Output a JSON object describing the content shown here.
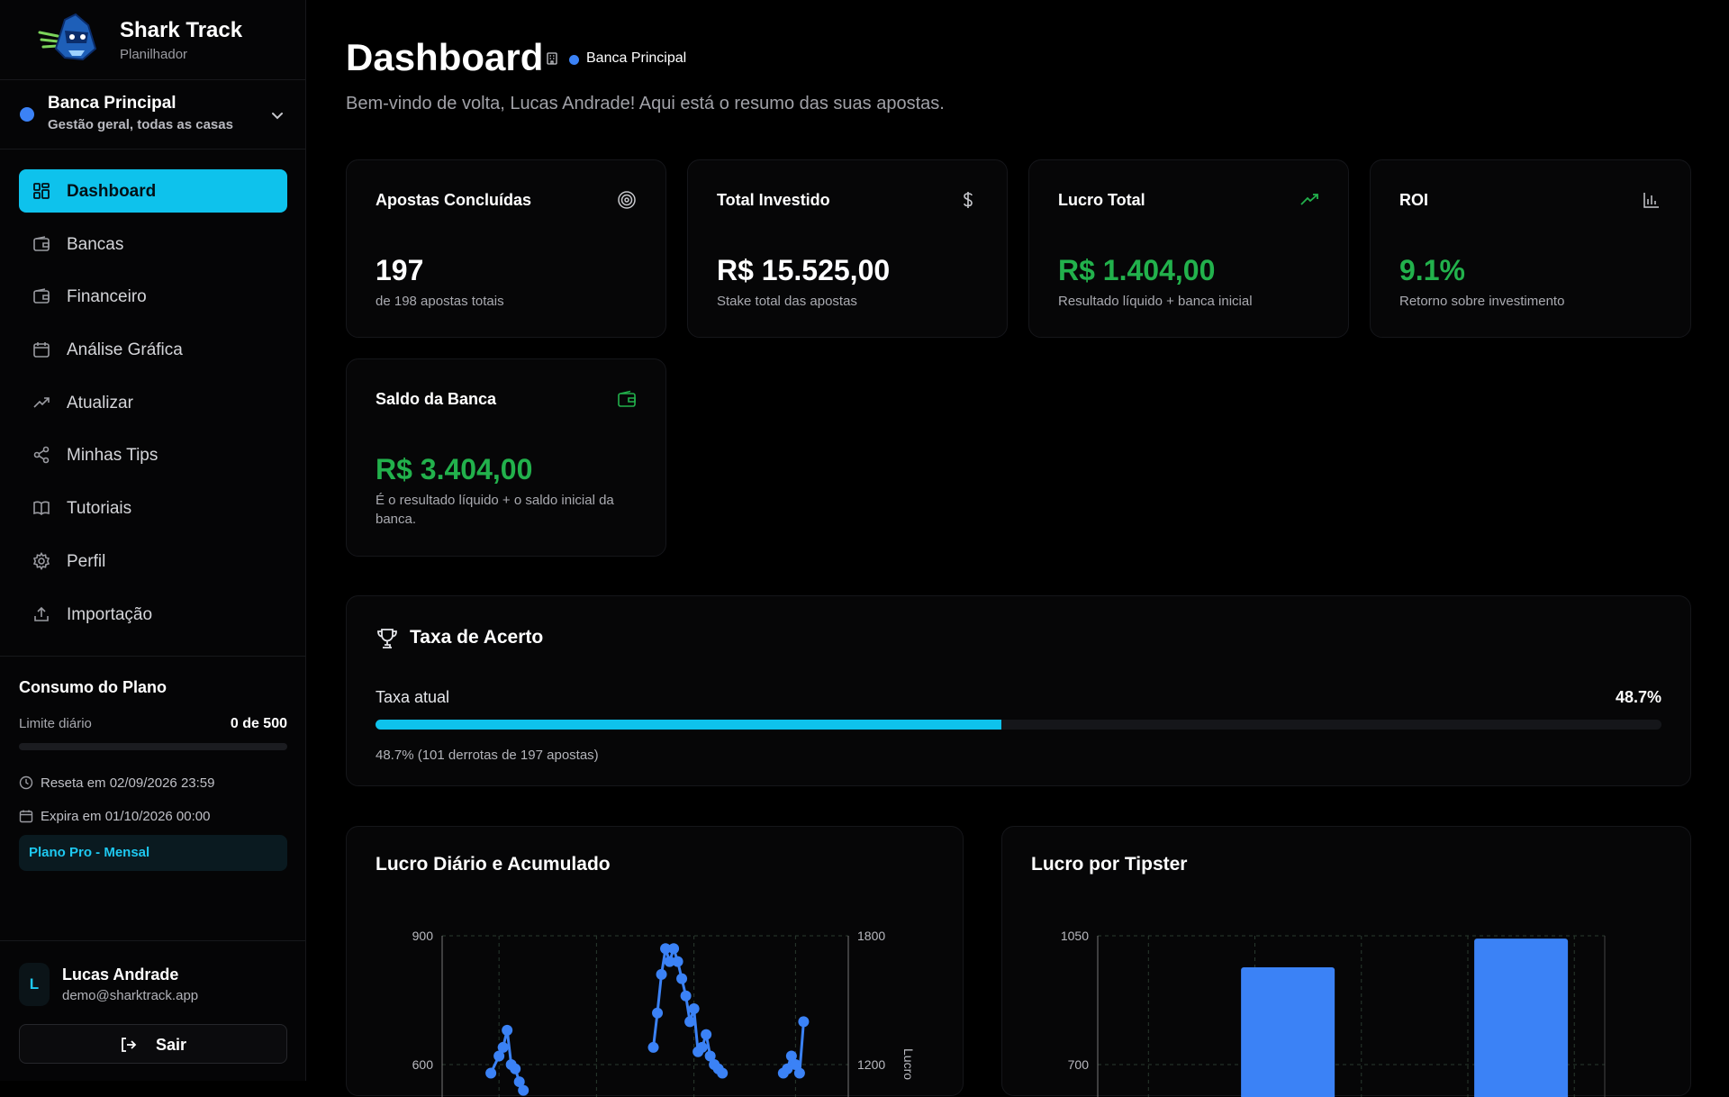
{
  "app": {
    "name": "Shark Track",
    "subtitle": "Planilhador"
  },
  "bank_selector": {
    "name": "Banca Principal",
    "description": "Gestão geral, todas as casas",
    "dot_color": "#3b82f6"
  },
  "nav": {
    "items": [
      {
        "label": "Dashboard",
        "icon": "grid-icon",
        "active": true
      },
      {
        "label": "Bancas",
        "icon": "wallet-icon",
        "active": false
      },
      {
        "label": "Financeiro",
        "icon": "wallet-icon",
        "active": false
      },
      {
        "label": "Análise Gráfica",
        "icon": "calendar-icon",
        "active": false
      },
      {
        "label": "Atualizar",
        "icon": "trending-up-icon",
        "active": false
      },
      {
        "label": "Minhas Tips",
        "icon": "share-icon",
        "active": false
      },
      {
        "label": "Tutoriais",
        "icon": "book-icon",
        "active": false
      },
      {
        "label": "Perfil",
        "icon": "gear-icon",
        "active": false
      },
      {
        "label": "Importação",
        "icon": "upload-icon",
        "active": false
      }
    ]
  },
  "plan": {
    "title": "Consumo do Plano",
    "limit_label": "Limite diário",
    "limit_value": "0 de 500",
    "usage_fraction": 0,
    "reset_text": "Reseta em 02/09/2026 23:59",
    "expire_text": "Expira em 01/10/2026 00:00",
    "badge": "Plano Pro - Mensal"
  },
  "user": {
    "initial": "L",
    "name": "Lucas Andrade",
    "email": "demo@sharktrack.app",
    "logout_label": "Sair"
  },
  "header": {
    "title": "Dashboard",
    "bank_label": "Banca Principal",
    "welcome": "Bem-vindo de volta, Lucas Andrade! Aqui está o resumo das suas apostas."
  },
  "stats": {
    "completed": {
      "title": "Apostas Concluídas",
      "value": "197",
      "sub": "de 198 apostas totais",
      "icon": "target-icon"
    },
    "invested": {
      "title": "Total Investido",
      "value": "R$ 15.525,00",
      "sub": "Stake total das apostas",
      "icon": "dollar-icon"
    },
    "profit": {
      "title": "Lucro Total",
      "value": "R$ 1.404,00",
      "sub": "Resultado líquido + banca inicial",
      "icon": "trending-up-icon"
    },
    "roi": {
      "title": "ROI",
      "value": "9.1%",
      "sub": "Retorno sobre investimento",
      "icon": "bar-chart-icon"
    },
    "balance": {
      "title": "Saldo da Banca",
      "value": "R$ 3.404,00",
      "sub": "É o resultado líquido + o saldo inicial da banca.",
      "icon": "wallet-icon"
    }
  },
  "hit_rate": {
    "title": "Taxa de Acerto",
    "label": "Taxa atual",
    "value_text": "48.7%",
    "percent": 48.7,
    "note": "48.7% (101 derrotas de 197 apostas)",
    "icon": "trophy-icon"
  },
  "colors": {
    "accent": "#0ec2ec",
    "positive": "#22b14c",
    "series": "#3b82f6"
  },
  "chart_data": [
    {
      "type": "line",
      "title": "Lucro Diário e Acumulado",
      "left_ticks": [
        "900",
        "600"
      ],
      "right_ticks": [
        "1800",
        "1200"
      ],
      "right_label": "Lucro",
      "ylim_left": [
        600,
        900
      ],
      "series": [
        {
          "values": [
            [
              0.12,
              580
            ],
            [
              0.14,
              620
            ],
            [
              0.15,
              640
            ],
            [
              0.16,
              680
            ],
            [
              0.17,
              600
            ],
            [
              0.18,
              590
            ],
            [
              0.19,
              560
            ],
            [
              0.2,
              540
            ],
            [
              0.52,
              640
            ],
            [
              0.53,
              720
            ],
            [
              0.54,
              810
            ],
            [
              0.55,
              870
            ],
            [
              0.56,
              840
            ],
            [
              0.57,
              870
            ],
            [
              0.58,
              840
            ],
            [
              0.59,
              800
            ],
            [
              0.6,
              760
            ],
            [
              0.61,
              700
            ],
            [
              0.62,
              730
            ],
            [
              0.63,
              630
            ],
            [
              0.64,
              640
            ],
            [
              0.65,
              670
            ],
            [
              0.66,
              620
            ],
            [
              0.67,
              600
            ],
            [
              0.68,
              590
            ],
            [
              0.69,
              580
            ],
            [
              0.84,
              580
            ],
            [
              0.85,
              590
            ],
            [
              0.86,
              620
            ],
            [
              0.87,
              600
            ],
            [
              0.88,
              580
            ],
            [
              0.89,
              700
            ]
          ]
        }
      ]
    },
    {
      "type": "bar",
      "title": "Lucro por Tipster",
      "left_ticks": [
        "1050",
        "700"
      ],
      "ylim": [
        600,
        1050
      ],
      "values": [
        940,
        1040
      ],
      "bar_positions": [
        0.375,
        0.835
      ]
    }
  ]
}
